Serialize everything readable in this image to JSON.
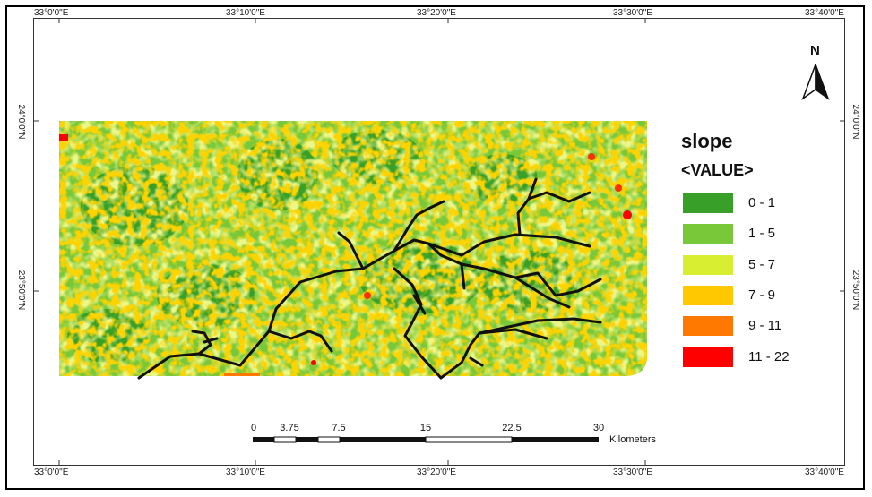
{
  "coords": {
    "top": [
      "33°0'0\"E",
      "33°10'0\"E",
      "33°20'0\"E",
      "33°30'0\"E",
      "33°40'0\"E"
    ],
    "bottom": [
      "33°0'0\"E",
      "33°10'0\"E",
      "33°20'0\"E",
      "33°30'0\"E",
      "33°40'0\"E"
    ],
    "left": [
      "24°0'0\"N",
      "23°50'0\"N"
    ],
    "right": [
      "24°0'0\"N",
      "23°50'0\"N"
    ]
  },
  "north_arrow": {
    "letter": "N",
    "icon": "north-arrow-icon"
  },
  "legend": {
    "title": "slope",
    "subtitle": "<VALUE>",
    "classes": [
      {
        "label": "0 - 1",
        "color": "#38a028"
      },
      {
        "label": "1 - 5",
        "color": "#78c83a"
      },
      {
        "label": "5 - 7",
        "color": "#d8ee30"
      },
      {
        "label": "7 - 9",
        "color": "#ffc800"
      },
      {
        "label": "9 - 11",
        "color": "#ff7800"
      },
      {
        "label": "11 - 22",
        "color": "#ff0000"
      }
    ]
  },
  "scale_bar": {
    "ticks": [
      "0",
      "3.75",
      "7.5",
      "15",
      "22.5",
      "30"
    ],
    "unit": "Kilometers"
  },
  "drainage_color": "#111111"
}
